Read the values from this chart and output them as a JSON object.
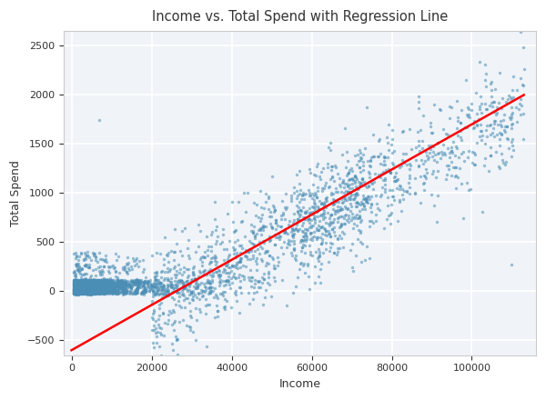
{
  "title": "Income vs. Total Spend with Regression Line",
  "xlabel": "Income",
  "ylabel": "Total Spend",
  "scatter_color": "#4a8db5",
  "line_color": "red",
  "scatter_alpha": 0.55,
  "scatter_size": 6,
  "xlim": [
    -2000,
    116000
  ],
  "ylim": [
    -650,
    2650
  ],
  "xticks": [
    0,
    20000,
    40000,
    60000,
    80000,
    100000
  ],
  "yticks": [
    -500,
    0,
    500,
    1000,
    1500,
    2000,
    2500
  ],
  "background_color": "#f0f4f8",
  "grid_color": "white",
  "grid_linewidth": 1.2,
  "seed": 42,
  "n_low": 1800,
  "n_mid": 900,
  "n_high": 600,
  "income_min": 500,
  "income_max": 113000,
  "reg_x0": 0,
  "reg_y0": -600,
  "reg_x1": 113000,
  "reg_y1": 2000,
  "fig_width": 6.0,
  "fig_height": 4.4,
  "title_fontsize": 10.5,
  "label_fontsize": 9,
  "tick_fontsize": 8
}
